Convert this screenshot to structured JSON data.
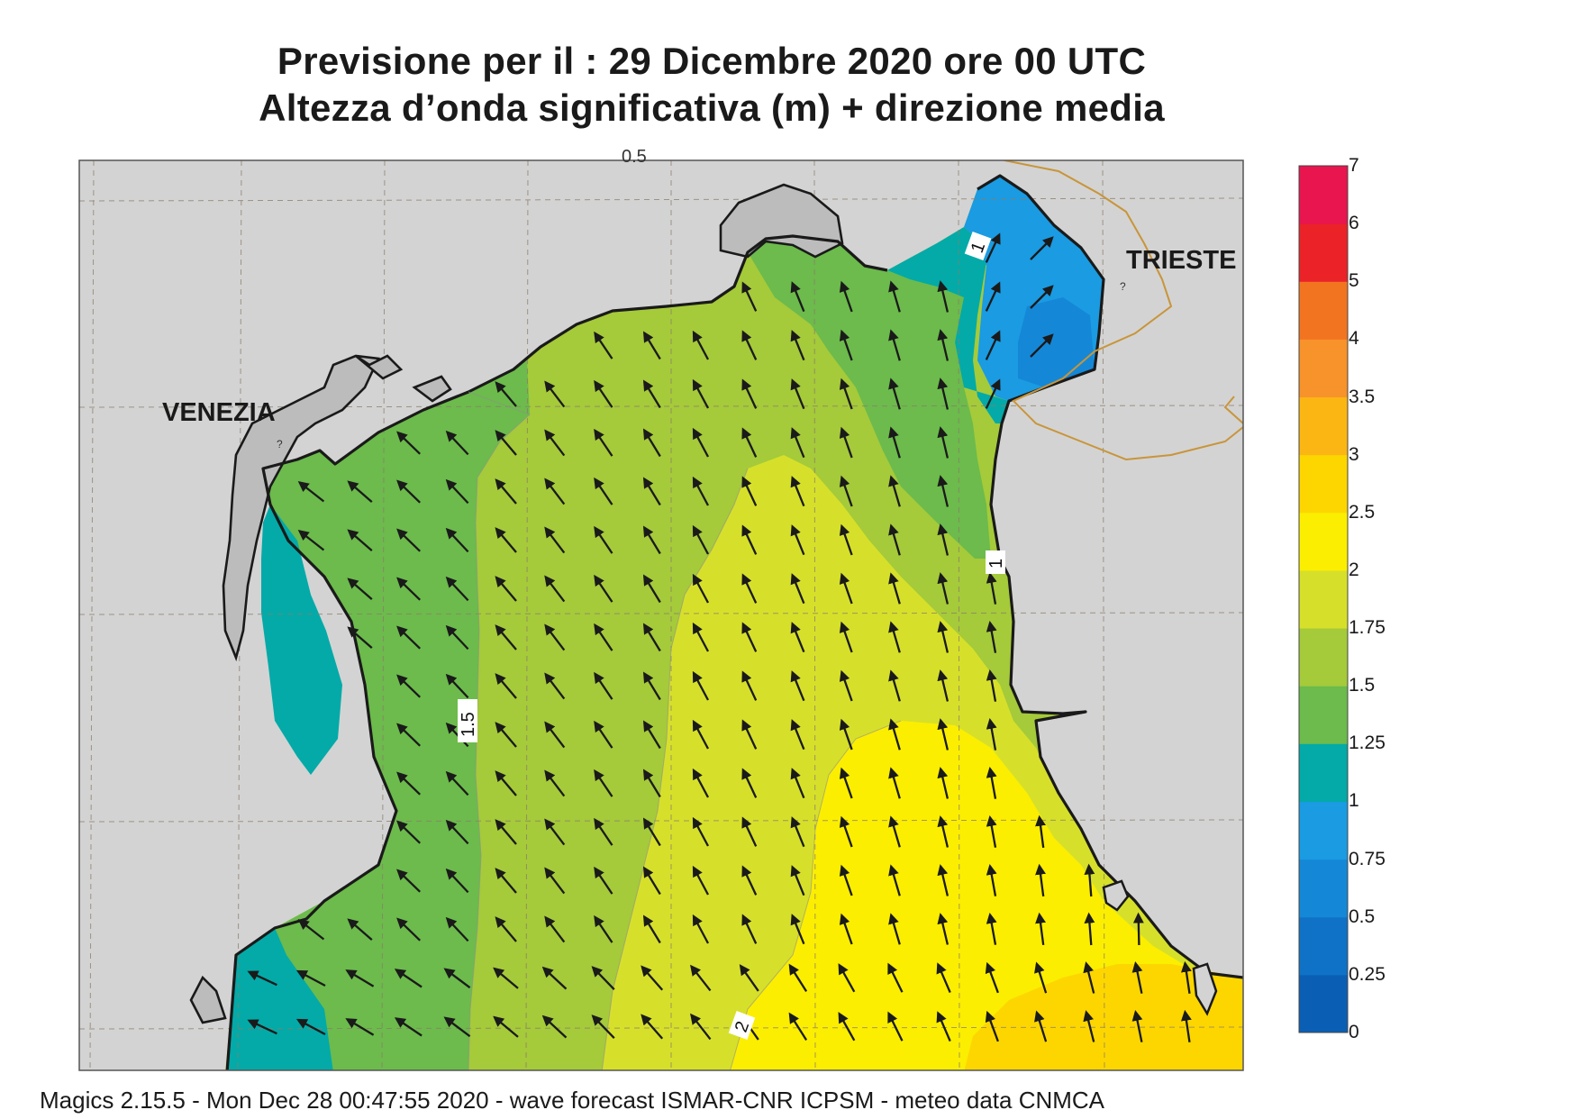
{
  "title": {
    "line1": "Previsione per il  :  29 Dicembre  2020   ore 00 UTC",
    "line2": "Altezza d’onda significativa (m) + direzione media"
  },
  "places": [
    {
      "name": "VENEZIA"
    },
    {
      "name": "TRIESTE"
    }
  ],
  "contour_labels": [
    "0.5",
    "1",
    "1",
    "1.5",
    "2"
  ],
  "colorbar": {
    "levels": [
      "7",
      "6",
      "5",
      "4",
      "3.5",
      "3",
      "2.5",
      "2",
      "1.75",
      "1.5",
      "1.25",
      "1",
      "0.75",
      "0.5",
      "0.25",
      "0"
    ],
    "colors": [
      "#0a5fb4",
      "#0f72c6",
      "#1587d7",
      "#1a9be2",
      "#03aaa8",
      "#6cbb4c",
      "#a5ca3a",
      "#d6e02a",
      "#fbee00",
      "#fdd600",
      "#fcb614",
      "#f8922a",
      "#f27421",
      "#eb2228",
      "#e8154f"
    ]
  },
  "map": {
    "land_color": "#d3d3d3",
    "coast_color": "#1a1a1a",
    "border_color": "#c8953a",
    "wave_direction": "mostly toward north / north-west"
  },
  "footer": "Magics 2.15.5 - Mon Dec 28 00:47:55 2020 - wave forecast  ISMAR-CNR  ICPSM - meteo data   CNMCA"
}
